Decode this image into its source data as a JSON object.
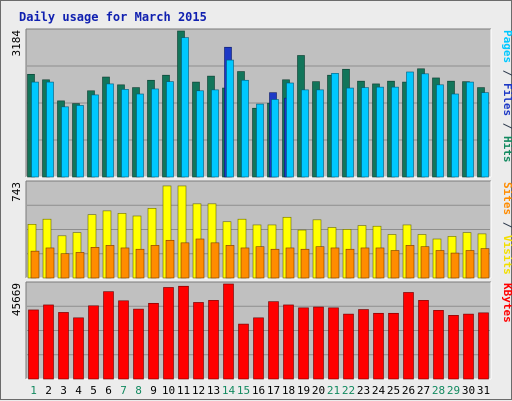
{
  "chart_data": {
    "type": "bar",
    "title": "Daily usage for March 2015",
    "categories": [
      "1",
      "2",
      "3",
      "4",
      "5",
      "6",
      "7",
      "8",
      "9",
      "10",
      "11",
      "12",
      "13",
      "14",
      "15",
      "16",
      "17",
      "18",
      "19",
      "20",
      "21",
      "22",
      "23",
      "24",
      "25",
      "26",
      "27",
      "28",
      "29",
      "30",
      "31"
    ],
    "weekend_days": [
      "1",
      "7",
      "8",
      "14",
      "15",
      "21",
      "22",
      "28",
      "29"
    ],
    "panels": [
      {
        "id": "top",
        "ymax_label": "3184",
        "ymax": 3184,
        "right_label_parts": [
          {
            "text": "Pages",
            "color": "#00c8ff"
          },
          {
            "text": " / ",
            "color": "#2e3b4e"
          },
          {
            "text": "Files",
            "color": "#1d39c6"
          },
          {
            "text": " / ",
            "color": "#2e3b4e"
          },
          {
            "text": "Hits",
            "color": "#138a60"
          }
        ],
        "series": [
          {
            "name": "Hits",
            "color": "#12755a",
            "values": [
              2240,
              2120,
              1660,
              1600,
              1880,
              2180,
              2010,
              1950,
              2110,
              2220,
              3184,
              2070,
              2200,
              1940,
              2300,
              1500,
              1610,
              2120,
              2650,
              2080,
              2220,
              2350,
              2090,
              2030,
              2090,
              2070,
              2360,
              2160,
              2090,
              2080,
              1950
            ]
          },
          {
            "name": "Files",
            "color": "#1d39c6",
            "values": [
              0,
              0,
              0,
              0,
              0,
              0,
              0,
              0,
              0,
              0,
              0,
              0,
              0,
              2830,
              0,
              0,
              1840,
              1720,
              0,
              0,
              0,
              0,
              0,
              0,
              0,
              0,
              0,
              0,
              0,
              0,
              0
            ]
          },
          {
            "name": "Pages",
            "color": "#00c8ff",
            "values": [
              2070,
              2070,
              1530,
              1560,
              1790,
              2030,
              1910,
              1810,
              1920,
              2080,
              3040,
              1880,
              1900,
              2550,
              2110,
              1590,
              1690,
              2050,
              1900,
              1900,
              2260,
              1940,
              1950,
              1960,
              1960,
              2290,
              2250,
              2010,
              1810,
              2070,
              1840
            ]
          }
        ]
      },
      {
        "id": "middle",
        "ymax_label": "743",
        "ymax": 743,
        "right_label_parts": [
          {
            "text": "Sites",
            "color": "#ff8c00"
          },
          {
            "text": " / ",
            "color": "#2e3b4e"
          },
          {
            "text": "Visits",
            "color": "#f2df00"
          }
        ],
        "series": [
          {
            "name": "Visits",
            "color": "#ffff00",
            "values": [
              420,
              460,
              330,
              355,
              495,
              525,
              505,
              485,
              545,
              720,
              720,
              580,
              580,
              440,
              460,
              415,
              415,
              475,
              375,
              455,
              395,
              380,
              410,
              405,
              340,
              415,
              340,
              305,
              325,
              355,
              345
            ]
          },
          {
            "name": "Sites",
            "color": "#ff8c00",
            "values": [
              210,
              235,
              190,
              200,
              240,
              255,
              235,
              225,
              255,
              295,
              275,
              305,
              275,
              255,
              235,
              245,
              225,
              235,
              225,
              245,
              235,
              225,
              235,
              235,
              215,
              255,
              245,
              215,
              195,
              215,
              230
            ]
          }
        ]
      },
      {
        "id": "bottom",
        "ymax_label": "45669",
        "ymax": 45669,
        "right_label_parts": [
          {
            "text": "KBytes",
            "color": "#ff0000"
          }
        ],
        "series": [
          {
            "name": "KBytes",
            "color": "#ff0000",
            "values": [
              33200,
              35600,
              32000,
              29400,
              35200,
              42000,
              37600,
              33600,
              36400,
              44000,
              44600,
              36800,
              37800,
              45669,
              26400,
              29400,
              37200,
              35600,
              34200,
              34600,
              34200,
              31200,
              33400,
              31600,
              31600,
              41600,
              37800,
              33000,
              30600,
              31200,
              31800
            ]
          }
        ]
      }
    ]
  }
}
